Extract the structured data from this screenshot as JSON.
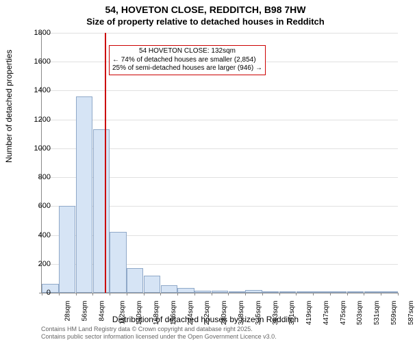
{
  "title": "54, HOVETON CLOSE, REDDITCH, B98 7HW",
  "subtitle": "Size of property relative to detached houses in Redditch",
  "ylabel": "Number of detached properties",
  "xlabel": "Distribution of detached houses by size in Redditch",
  "footer_line1": "Contains HM Land Registry data © Crown copyright and database right 2025.",
  "footer_line2": "Contains public sector information licensed under the Open Government Licence v3.0.",
  "chart": {
    "type": "histogram",
    "ylim": [
      0,
      1800
    ],
    "ytick_step": 200,
    "background_color": "#ffffff",
    "grid_color": "#e0e0e0",
    "axis_color": "#888888",
    "bar_fill": "#d6e4f5",
    "bar_border": "#8fa8c8",
    "marker_color": "#cc0000",
    "marker_x": 132,
    "x_categories": [
      "28sqm",
      "56sqm",
      "84sqm",
      "112sqm",
      "140sqm",
      "168sqm",
      "196sqm",
      "224sqm",
      "252sqm",
      "280sqm",
      "308sqm",
      "335sqm",
      "363sqm",
      "391sqm",
      "419sqm",
      "447sqm",
      "475sqm",
      "503sqm",
      "531sqm",
      "559sqm",
      "587sqm"
    ],
    "bar_values": [
      60,
      600,
      1360,
      1130,
      420,
      170,
      120,
      50,
      35,
      15,
      12,
      5,
      18,
      3,
      10,
      3,
      2,
      2,
      3,
      2,
      2
    ],
    "annotation": {
      "line1": "54 HOVETON CLOSE: 132sqm",
      "line2": "← 74% of detached houses are smaller (2,854)",
      "line3": "25% of semi-detached houses are larger (946) →"
    }
  }
}
